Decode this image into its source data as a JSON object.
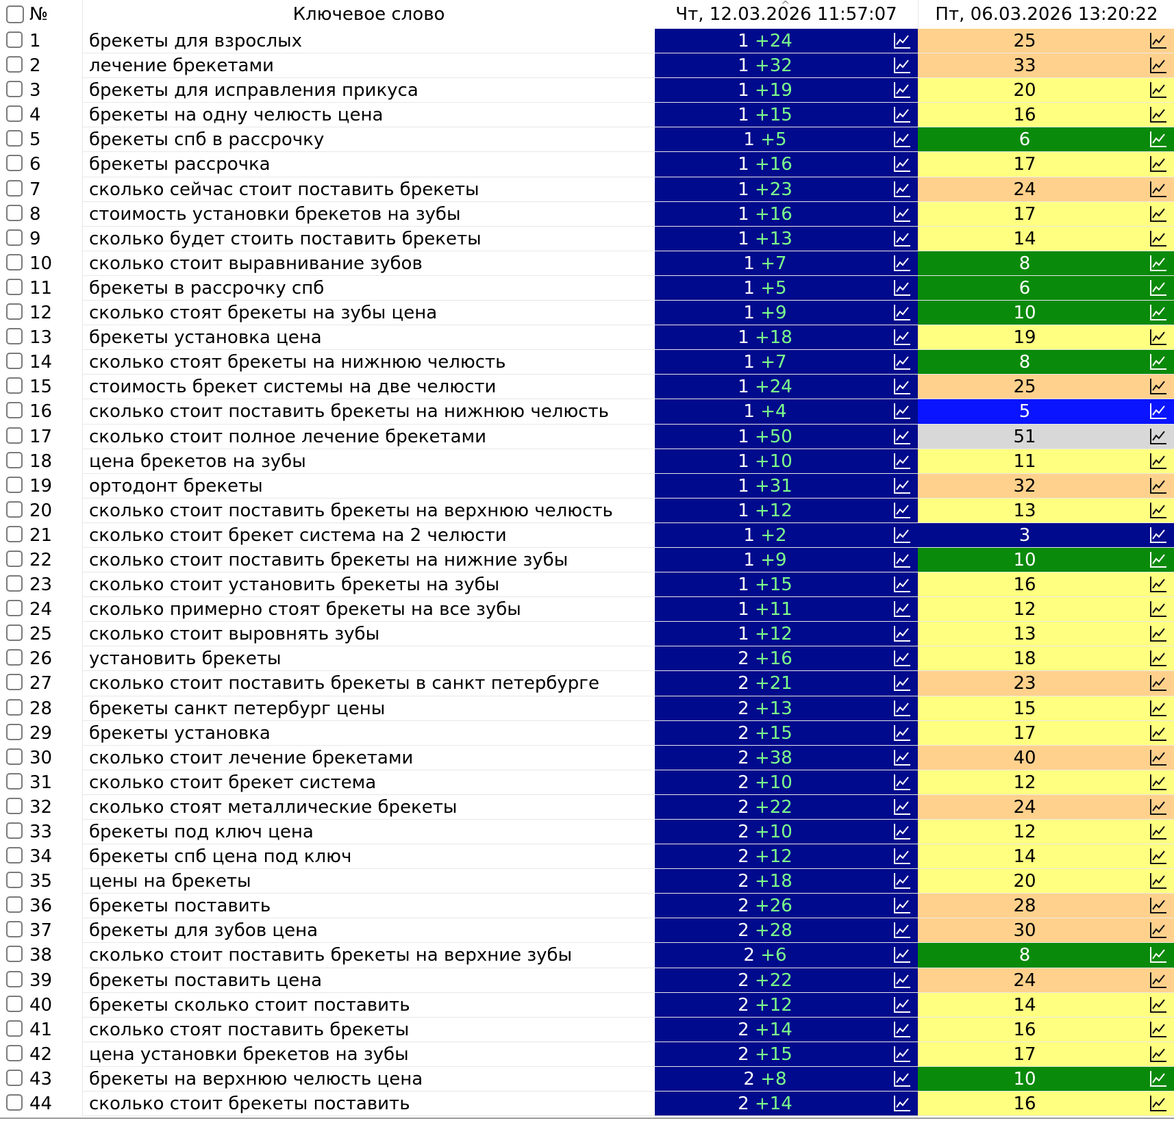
{
  "header": {
    "num_label": "№",
    "keyword_label": "Ключевое слово",
    "date1_label": "Чт, 12.03.2026 11:57:07",
    "date2_label": "Пт, 06.03.2026 13:20:22",
    "sort_indicator": "^"
  },
  "icons": {
    "chart_icon": "chart-line-icon"
  },
  "colors": {
    "date1_bg": "#000a8c",
    "delta_text": "#7dff8a",
    "top3": "#000a8c",
    "top5": "#0a14ff",
    "top10": "#0a8a0a",
    "top20": "#ffff80",
    "top50": "#ffd18c",
    "beyond50": "#d8d8d8"
  },
  "rows": [
    {
      "n": "1",
      "kw": "брекеты для взрослых",
      "p1": "1",
      "d1": "+24",
      "p2": "25"
    },
    {
      "n": "2",
      "kw": "лечение брекетами",
      "p1": "1",
      "d1": "+32",
      "p2": "33"
    },
    {
      "n": "3",
      "kw": "брекеты для исправления прикуса",
      "p1": "1",
      "d1": "+19",
      "p2": "20"
    },
    {
      "n": "4",
      "kw": "брекеты на одну челюсть цена",
      "p1": "1",
      "d1": "+15",
      "p2": "16"
    },
    {
      "n": "5",
      "kw": "брекеты спб в рассрочку",
      "p1": "1",
      "d1": "+5",
      "p2": "6"
    },
    {
      "n": "6",
      "kw": "брекеты рассрочка",
      "p1": "1",
      "d1": "+16",
      "p2": "17"
    },
    {
      "n": "7",
      "kw": "сколько сейчас стоит поставить брекеты",
      "p1": "1",
      "d1": "+23",
      "p2": "24"
    },
    {
      "n": "8",
      "kw": "стоимость установки брекетов на зубы",
      "p1": "1",
      "d1": "+16",
      "p2": "17"
    },
    {
      "n": "9",
      "kw": "сколько будет стоить поставить брекеты",
      "p1": "1",
      "d1": "+13",
      "p2": "14"
    },
    {
      "n": "10",
      "kw": "сколько стоит выравнивание зубов",
      "p1": "1",
      "d1": "+7",
      "p2": "8"
    },
    {
      "n": "11",
      "kw": "брекеты в рассрочку спб",
      "p1": "1",
      "d1": "+5",
      "p2": "6"
    },
    {
      "n": "12",
      "kw": "сколько стоят брекеты на зубы цена",
      "p1": "1",
      "d1": "+9",
      "p2": "10"
    },
    {
      "n": "13",
      "kw": "брекеты установка цена",
      "p1": "1",
      "d1": "+18",
      "p2": "19"
    },
    {
      "n": "14",
      "kw": "сколько стоят брекеты на нижнюю челюсть",
      "p1": "1",
      "d1": "+7",
      "p2": "8"
    },
    {
      "n": "15",
      "kw": "стоимость брекет системы на две челюсти",
      "p1": "1",
      "d1": "+24",
      "p2": "25"
    },
    {
      "n": "16",
      "kw": "сколько стоит поставить брекеты на нижнюю челюсть",
      "p1": "1",
      "d1": "+4",
      "p2": "5"
    },
    {
      "n": "17",
      "kw": "сколько стоит полное лечение брекетами",
      "p1": "1",
      "d1": "+50",
      "p2": "51"
    },
    {
      "n": "18",
      "kw": "цена брекетов на зубы",
      "p1": "1",
      "d1": "+10",
      "p2": "11"
    },
    {
      "n": "19",
      "kw": "ортодонт брекеты",
      "p1": "1",
      "d1": "+31",
      "p2": "32"
    },
    {
      "n": "20",
      "kw": "сколько стоит поставить брекеты на верхнюю челюсть",
      "p1": "1",
      "d1": "+12",
      "p2": "13"
    },
    {
      "n": "21",
      "kw": "сколько стоит брекет система на 2 челюсти",
      "p1": "1",
      "d1": "+2",
      "p2": "3"
    },
    {
      "n": "22",
      "kw": "сколько стоит поставить брекеты на нижние зубы",
      "p1": "1",
      "d1": "+9",
      "p2": "10"
    },
    {
      "n": "23",
      "kw": "сколько стоит установить брекеты на зубы",
      "p1": "1",
      "d1": "+15",
      "p2": "16"
    },
    {
      "n": "24",
      "kw": "сколько примерно стоят брекеты на все зубы",
      "p1": "1",
      "d1": "+11",
      "p2": "12"
    },
    {
      "n": "25",
      "kw": "сколько стоит выровнять зубы",
      "p1": "1",
      "d1": "+12",
      "p2": "13"
    },
    {
      "n": "26",
      "kw": "установить брекеты",
      "p1": "2",
      "d1": "+16",
      "p2": "18"
    },
    {
      "n": "27",
      "kw": "сколько стоит поставить брекеты в санкт петербурге",
      "p1": "2",
      "d1": "+21",
      "p2": "23"
    },
    {
      "n": "28",
      "kw": "брекеты санкт петербург цены",
      "p1": "2",
      "d1": "+13",
      "p2": "15"
    },
    {
      "n": "29",
      "kw": "брекеты установка",
      "p1": "2",
      "d1": "+15",
      "p2": "17"
    },
    {
      "n": "30",
      "kw": "сколько стоит лечение брекетами",
      "p1": "2",
      "d1": "+38",
      "p2": "40"
    },
    {
      "n": "31",
      "kw": "сколько стоит брекет система",
      "p1": "2",
      "d1": "+10",
      "p2": "12"
    },
    {
      "n": "32",
      "kw": "сколько стоят металлические брекеты",
      "p1": "2",
      "d1": "+22",
      "p2": "24"
    },
    {
      "n": "33",
      "kw": "брекеты под ключ цена",
      "p1": "2",
      "d1": "+10",
      "p2": "12"
    },
    {
      "n": "34",
      "kw": "брекеты спб цена под ключ",
      "p1": "2",
      "d1": "+12",
      "p2": "14"
    },
    {
      "n": "35",
      "kw": "цены на брекеты",
      "p1": "2",
      "d1": "+18",
      "p2": "20"
    },
    {
      "n": "36",
      "kw": "брекеты поставить",
      "p1": "2",
      "d1": "+26",
      "p2": "28"
    },
    {
      "n": "37",
      "kw": "брекеты для зубов цена",
      "p1": "2",
      "d1": "+28",
      "p2": "30"
    },
    {
      "n": "38",
      "kw": "сколько стоит поставить брекеты на верхние зубы",
      "p1": "2",
      "d1": "+6",
      "p2": "8"
    },
    {
      "n": "39",
      "kw": "брекеты поставить цена",
      "p1": "2",
      "d1": "+22",
      "p2": "24"
    },
    {
      "n": "40",
      "kw": "брекеты сколько стоит поставить",
      "p1": "2",
      "d1": "+12",
      "p2": "14"
    },
    {
      "n": "41",
      "kw": "сколько стоят поставить брекеты",
      "p1": "2",
      "d1": "+14",
      "p2": "16"
    },
    {
      "n": "42",
      "kw": "цена установки брекетов на зубы",
      "p1": "2",
      "d1": "+15",
      "p2": "17"
    },
    {
      "n": "43",
      "kw": "брекеты на верхнюю челюсть цена",
      "p1": "2",
      "d1": "+8",
      "p2": "10"
    },
    {
      "n": "44",
      "kw": "сколько стоит брекеты поставить",
      "p1": "2",
      "d1": "+14",
      "p2": "16"
    }
  ]
}
